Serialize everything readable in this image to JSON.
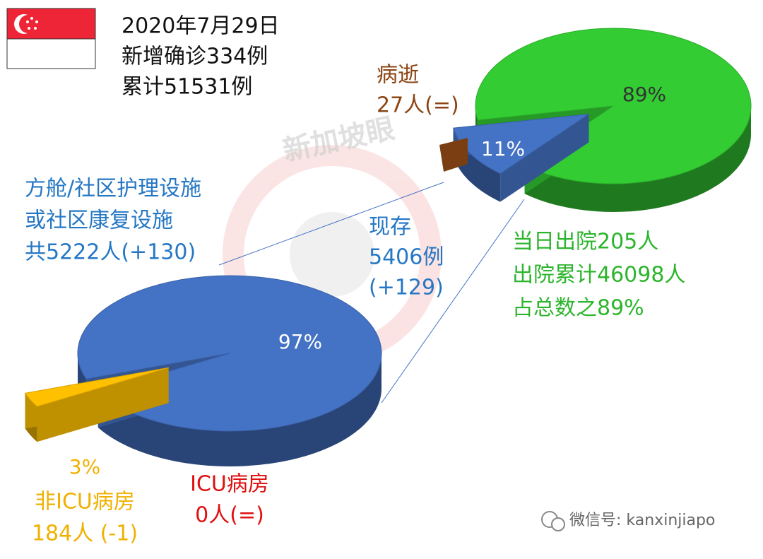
{
  "header": {
    "lines": [
      "2020年7月29日",
      "新增确诊334例",
      "累计51531例"
    ]
  },
  "watermark": "新加坡眼",
  "footer": "微信号: kanxinjiapo",
  "chart_data": [
    {
      "type": "pie",
      "values": [
        11,
        89
      ],
      "value_labels": [
        "11%",
        "89%"
      ],
      "colors": [
        "#4472c4",
        "#33cc33"
      ]
    },
    {
      "type": "pie",
      "values": [
        3,
        97
      ],
      "value_labels": [
        "3%",
        "97%"
      ],
      "colors": [
        "#ffc000",
        "#4472c4"
      ]
    }
  ],
  "annotations": {
    "deaths": [
      "病逝",
      "27人(=)"
    ],
    "community": [
      "方舱/社区护理设施",
      "或社区康复设施",
      "共5222人(+130)"
    ],
    "current": [
      "现存",
      "5406例",
      "(+129)"
    ],
    "discharged": [
      "当日出院205人",
      "出院累计46098人",
      "占总数之89%"
    ],
    "icu": [
      "ICU病房",
      "0人(=)"
    ],
    "non_icu": [
      "非ICU病房",
      "184人 (-1)"
    ]
  }
}
